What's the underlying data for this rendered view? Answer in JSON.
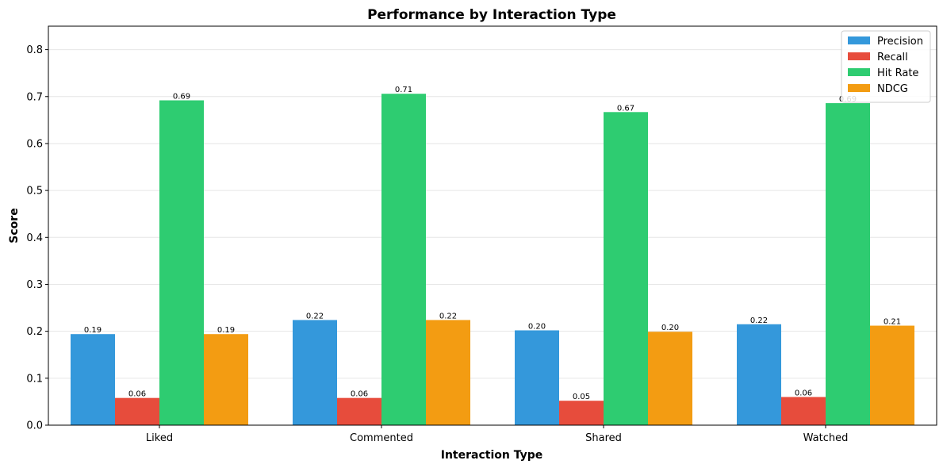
{
  "chart_data": {
    "type": "bar",
    "title": "Performance by Interaction Type",
    "xlabel": "Interaction Type",
    "ylabel": "Score",
    "categories": [
      "Liked",
      "Commented",
      "Shared",
      "Watched"
    ],
    "ylim": [
      0,
      0.85
    ],
    "yticks": [
      "0.0",
      "0.1",
      "0.2",
      "0.3",
      "0.4",
      "0.5",
      "0.6",
      "0.7",
      "0.8"
    ],
    "grid": true,
    "legend_position": "top-right",
    "series": [
      {
        "name": "Precision",
        "color": "#3498db",
        "values": [
          0.194,
          0.224,
          0.202,
          0.215
        ],
        "labels": [
          "0.19",
          "0.22",
          "0.20",
          "0.22"
        ]
      },
      {
        "name": "Recall",
        "color": "#e74c3c",
        "values": [
          0.058,
          0.058,
          0.052,
          0.06
        ],
        "labels": [
          "0.06",
          "0.06",
          "0.05",
          "0.06"
        ]
      },
      {
        "name": "Hit Rate",
        "color": "#2ecc71",
        "values": [
          0.692,
          0.706,
          0.667,
          0.686
        ],
        "labels": [
          "0.69",
          "0.71",
          "0.67",
          "0.69"
        ]
      },
      {
        "name": "NDCG",
        "color": "#f39c12",
        "values": [
          0.194,
          0.224,
          0.199,
          0.212
        ],
        "labels": [
          "0.19",
          "0.22",
          "0.20",
          "0.21"
        ]
      }
    ]
  }
}
